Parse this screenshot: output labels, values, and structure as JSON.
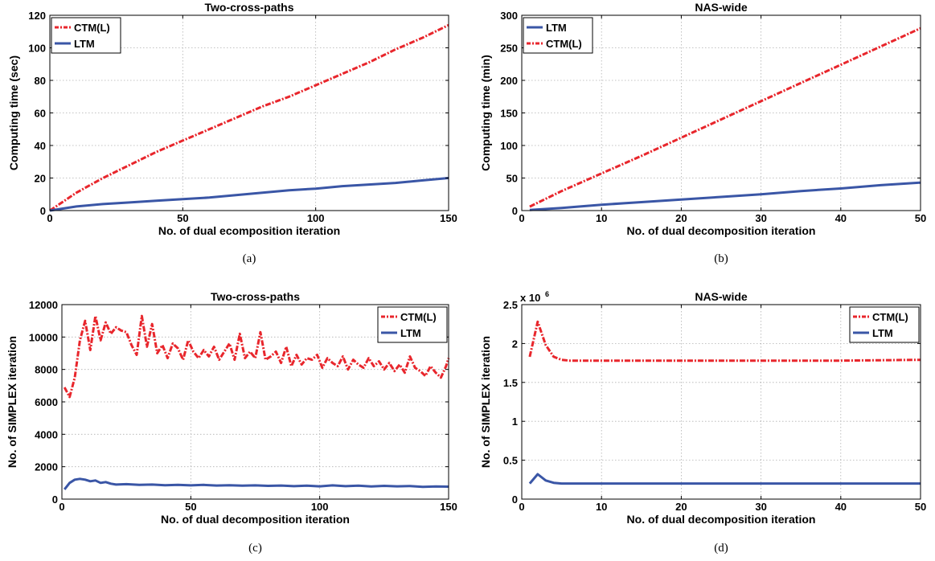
{
  "colors": {
    "CTM(L)": "#e8262c",
    "LTM": "#3a56a6"
  },
  "chart_data": [
    {
      "type": "line",
      "title": "Two-cross-paths",
      "xlabel": "No. of dual ecomposition iteration",
      "ylabel": "Computing time (sec)",
      "caption": "(a)",
      "xlim": [
        0,
        150
      ],
      "ylim": [
        0,
        120
      ],
      "xticks": [
        0,
        50,
        100,
        150
      ],
      "yticks": [
        0,
        20,
        40,
        60,
        80,
        100,
        120
      ],
      "legend": "top-left",
      "grid": true,
      "series": [
        {
          "name": "CTM(L)",
          "style": "dashdot",
          "x": [
            0,
            10,
            20,
            30,
            40,
            50,
            60,
            70,
            80,
            90,
            100,
            110,
            120,
            130,
            140,
            150
          ],
          "y": [
            0,
            11,
            20,
            28,
            36,
            43,
            50,
            57,
            64,
            70,
            77,
            84,
            91,
            99,
            106,
            114
          ]
        },
        {
          "name": "LTM",
          "style": "solid",
          "x": [
            0,
            10,
            20,
            30,
            40,
            50,
            60,
            70,
            80,
            90,
            100,
            110,
            120,
            130,
            140,
            150
          ],
          "y": [
            0,
            2.5,
            4,
            5,
            6,
            7,
            8,
            9.5,
            11,
            12.5,
            13.5,
            15,
            16,
            17,
            18.5,
            20
          ]
        }
      ]
    },
    {
      "type": "line",
      "title": "NAS-wide",
      "xlabel": "No. of dual decomposition iteration",
      "ylabel": "Computing time (min)",
      "caption": "(b)",
      "xlim": [
        0,
        50
      ],
      "ylim": [
        0,
        300
      ],
      "xticks": [
        0,
        10,
        20,
        30,
        40,
        50
      ],
      "yticks": [
        0,
        50,
        100,
        150,
        200,
        250,
        300
      ],
      "legend": "top-left",
      "grid": true,
      "series": [
        {
          "name": "LTM",
          "style": "solid",
          "x": [
            1,
            5,
            10,
            15,
            20,
            25,
            30,
            35,
            40,
            45,
            50
          ],
          "y": [
            1,
            4,
            9,
            13,
            17,
            21,
            25,
            30,
            34,
            39,
            43
          ]
        },
        {
          "name": "CTM(L)",
          "style": "dashdot",
          "x": [
            1,
            5,
            10,
            15,
            20,
            25,
            30,
            35,
            40,
            45,
            50
          ],
          "y": [
            6,
            30,
            57,
            84,
            112,
            140,
            168,
            196,
            224,
            252,
            280
          ]
        }
      ]
    },
    {
      "type": "line",
      "title": "Two-cross-paths",
      "xlabel": "No. of dual decomposition iteration",
      "ylabel": "No. of SIMPLEX iteration",
      "caption": "(c)",
      "xlim": [
        0,
        150
      ],
      "ylim": [
        0,
        12000
      ],
      "xticks": [
        0,
        50,
        100,
        150
      ],
      "yticks": [
        0,
        2000,
        4000,
        6000,
        8000,
        10000,
        12000
      ],
      "legend": "top-right",
      "grid": true,
      "series": [
        {
          "name": "CTM(L)",
          "style": "dashdot",
          "x": [
            1,
            3,
            5,
            7,
            9,
            11,
            13,
            15,
            17,
            19,
            21,
            23,
            25,
            27,
            29,
            31,
            33,
            35,
            37,
            39,
            41,
            43,
            45,
            47,
            49,
            51,
            53,
            55,
            57,
            59,
            61,
            63,
            65,
            67,
            69,
            71,
            73,
            75,
            77,
            79,
            81,
            83,
            85,
            87,
            89,
            91,
            93,
            95,
            97,
            99,
            101,
            103,
            105,
            107,
            109,
            111,
            113,
            115,
            117,
            119,
            121,
            123,
            125,
            127,
            129,
            131,
            133,
            135,
            137,
            139,
            141,
            143,
            145,
            147,
            149,
            150
          ],
          "y": [
            6900,
            6300,
            7500,
            9800,
            11000,
            9200,
            11300,
            9800,
            10900,
            10200,
            10600,
            10400,
            10300,
            9500,
            8900,
            11300,
            9400,
            10800,
            9000,
            9500,
            8700,
            9600,
            9300,
            8600,
            9800,
            9100,
            8700,
            9200,
            8800,
            9400,
            8600,
            9100,
            9600,
            8600,
            10200,
            8700,
            9100,
            8700,
            10300,
            8600,
            8800,
            9100,
            8400,
            9400,
            8200,
            8900,
            8300,
            8700,
            8600,
            8900,
            8100,
            8700,
            8400,
            8200,
            8800,
            8000,
            8600,
            8300,
            8100,
            8700,
            8200,
            8500,
            8000,
            8400,
            7900,
            8300,
            7800,
            8800,
            8100,
            7900,
            7600,
            8200,
            7800,
            7500,
            8200,
            8700
          ]
        },
        {
          "name": "LTM",
          "style": "solid",
          "x": [
            1,
            3,
            5,
            7,
            9,
            11,
            13,
            15,
            17,
            19,
            21,
            25,
            30,
            35,
            40,
            45,
            50,
            55,
            60,
            65,
            70,
            75,
            80,
            85,
            90,
            95,
            100,
            105,
            110,
            115,
            120,
            125,
            130,
            135,
            140,
            145,
            150
          ],
          "y": [
            600,
            1000,
            1200,
            1250,
            1200,
            1100,
            1150,
            1000,
            1050,
            950,
            900,
            920,
            880,
            900,
            860,
            880,
            850,
            880,
            840,
            860,
            830,
            850,
            820,
            840,
            800,
            830,
            790,
            850,
            800,
            830,
            780,
            820,
            790,
            810,
            760,
            780,
            770
          ]
        }
      ]
    },
    {
      "type": "line",
      "title": "NAS-wide",
      "xlabel": "No. of dual decomposition iteration",
      "ylabel": "No. of SIMPLEX iteration",
      "caption": "(d)",
      "xlim": [
        0,
        50
      ],
      "ylim": [
        0,
        2500000
      ],
      "xticks": [
        0,
        10,
        20,
        30,
        40,
        50
      ],
      "yticks": [
        0,
        500000,
        1000000,
        1500000,
        2000000,
        2500000
      ],
      "ytick_labels": [
        "0",
        "0.5",
        "1",
        "1.5",
        "2",
        "2.5"
      ],
      "yscale_label": "x 10",
      "yscale_exp": "6",
      "legend": "top-right",
      "grid": true,
      "series": [
        {
          "name": "CTM(L)",
          "style": "dashdot",
          "x": [
            1,
            2,
            3,
            4,
            5,
            6,
            8,
            10,
            20,
            30,
            40,
            50
          ],
          "y": [
            1830000,
            2280000,
            1980000,
            1830000,
            1790000,
            1780000,
            1780000,
            1780000,
            1780000,
            1780000,
            1780000,
            1790000
          ]
        },
        {
          "name": "LTM",
          "style": "solid",
          "x": [
            1,
            2,
            3,
            4,
            5,
            6,
            8,
            10,
            20,
            30,
            40,
            50
          ],
          "y": [
            200000,
            320000,
            240000,
            210000,
            200000,
            200000,
            200000,
            200000,
            200000,
            200000,
            200000,
            200000
          ]
        }
      ]
    }
  ]
}
